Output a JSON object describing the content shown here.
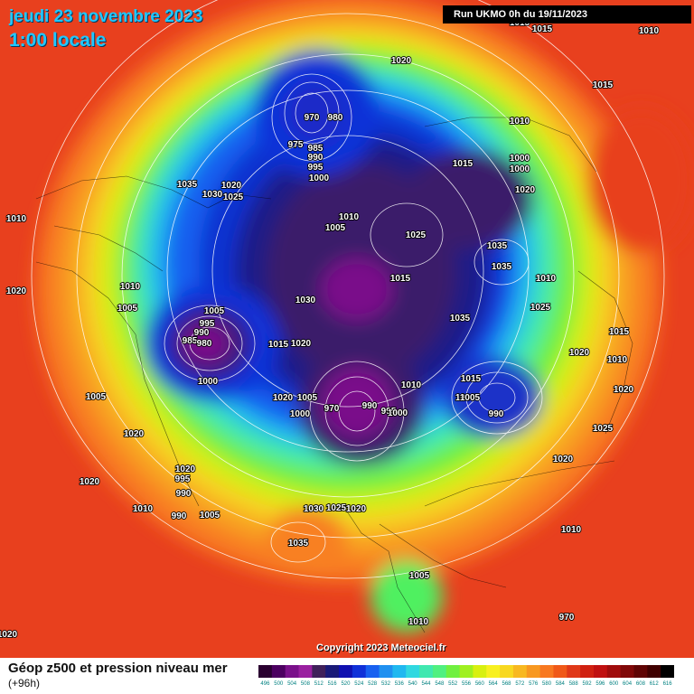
{
  "header": {
    "date": "jeudi 23 novembre 2023",
    "time": "1:00 locale",
    "run": "Run UKMO 0h du 19/11/2023"
  },
  "copyright": "Copyright 2023 Meteociel.fr",
  "legend": {
    "title": "Géop z500 et pression niveau mer",
    "subtitle": "(+96h)",
    "ticks": [
      "496",
      "500",
      "504",
      "508",
      "512",
      "516",
      "520",
      "524",
      "528",
      "532",
      "536",
      "540",
      "544",
      "548",
      "552",
      "556",
      "560",
      "564",
      "568",
      "572",
      "576",
      "580",
      "584",
      "588",
      "592",
      "596",
      "600",
      "604",
      "608",
      "612",
      "616"
    ],
    "colors": [
      "#2a0030",
      "#4c0060",
      "#7a108a",
      "#9a20a0",
      "#40205a",
      "#1a1a78",
      "#1010b0",
      "#1030d8",
      "#1860f0",
      "#2090f0",
      "#20b8f0",
      "#30d8e0",
      "#40e8b0",
      "#50f080",
      "#70f040",
      "#a0f020",
      "#d8f010",
      "#f8f020",
      "#f8d820",
      "#f8b820",
      "#f89820",
      "#f87820",
      "#f05818",
      "#e03818",
      "#d02010",
      "#c01010",
      "#a00c0c",
      "#800808",
      "#600404",
      "#400000",
      "#000000"
    ]
  },
  "pressure_labels": [
    "1015",
    "1015",
    "1010",
    "1020",
    "1015",
    "1010",
    "1005",
    "970",
    "980",
    "1010",
    "975",
    "985",
    "990",
    "995",
    "1000",
    "1015",
    "1000",
    "1000",
    "1020",
    "1035",
    "1020",
    "1030",
    "1025",
    "1010",
    "1005",
    "1025",
    "1035",
    "1035",
    "1010",
    "1020",
    "1005",
    "1010",
    "1015",
    "1030",
    "1025",
    "1005",
    "995",
    "990",
    "985",
    "980",
    "1015",
    "1020",
    "1015",
    "1020",
    "1000",
    "1010",
    "1035",
    "1020",
    "1020",
    "1005",
    "1000",
    "1005",
    "1010",
    "1015",
    "1020",
    "970",
    "990",
    "995",
    "1000",
    "1005",
    "990",
    "1000",
    "1020",
    "1020",
    "995",
    "990",
    "1025",
    "1020",
    "990",
    "1010",
    "1005",
    "1030",
    "1025",
    "1020",
    "1035",
    "1005",
    "1010",
    "1010",
    "970",
    "1020"
  ]
}
